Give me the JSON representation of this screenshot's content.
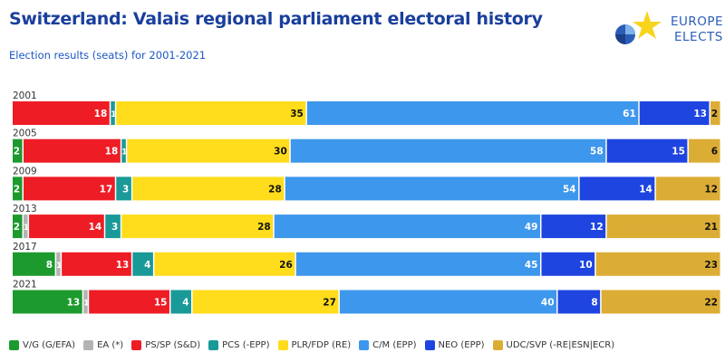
{
  "header": {
    "title": "Switzerland: Valais regional parliament electoral history",
    "subtitle": "Election results (seats) for 2001-2021"
  },
  "logo": {
    "line1": "EUROPE",
    "line2": "ELECTS"
  },
  "chart_data": {
    "type": "bar",
    "orientation": "horizontal",
    "stacked": true,
    "categories": [
      "2001",
      "2005",
      "2009",
      "2013",
      "2017",
      "2021"
    ],
    "series": [
      {
        "name": "V/G (G/EFA)",
        "color": "#1d9a2e",
        "values": [
          0,
          2,
          2,
          2,
          8,
          13
        ]
      },
      {
        "name": "EA (*)",
        "color": "#b3b3b3",
        "values": [
          0,
          0,
          0,
          1,
          1,
          1
        ]
      },
      {
        "name": "PS/SP (S&D)",
        "color": "#ee1c25",
        "values": [
          18,
          18,
          17,
          14,
          13,
          15
        ]
      },
      {
        "name": "PCS (-EPP)",
        "color": "#1a9999",
        "values": [
          1,
          1,
          3,
          3,
          4,
          4
        ]
      },
      {
        "name": "PLR/FDP (RE)",
        "color": "#ffdc1c",
        "values": [
          35,
          30,
          28,
          28,
          26,
          27
        ]
      },
      {
        "name": "C/M (EPP)",
        "color": "#3d97ec",
        "values": [
          61,
          58,
          54,
          49,
          45,
          40
        ]
      },
      {
        "name": "NEO (EPP)",
        "color": "#1f45e0",
        "values": [
          13,
          15,
          14,
          12,
          10,
          8
        ]
      },
      {
        "name": "UDC/SVP (-RE|ESN|ECR)",
        "color": "#dcad34",
        "values": [
          2,
          6,
          12,
          21,
          23,
          22
        ]
      }
    ],
    "xlim": [
      0,
      130
    ],
    "grid": false,
    "legend_position": "bottom"
  }
}
